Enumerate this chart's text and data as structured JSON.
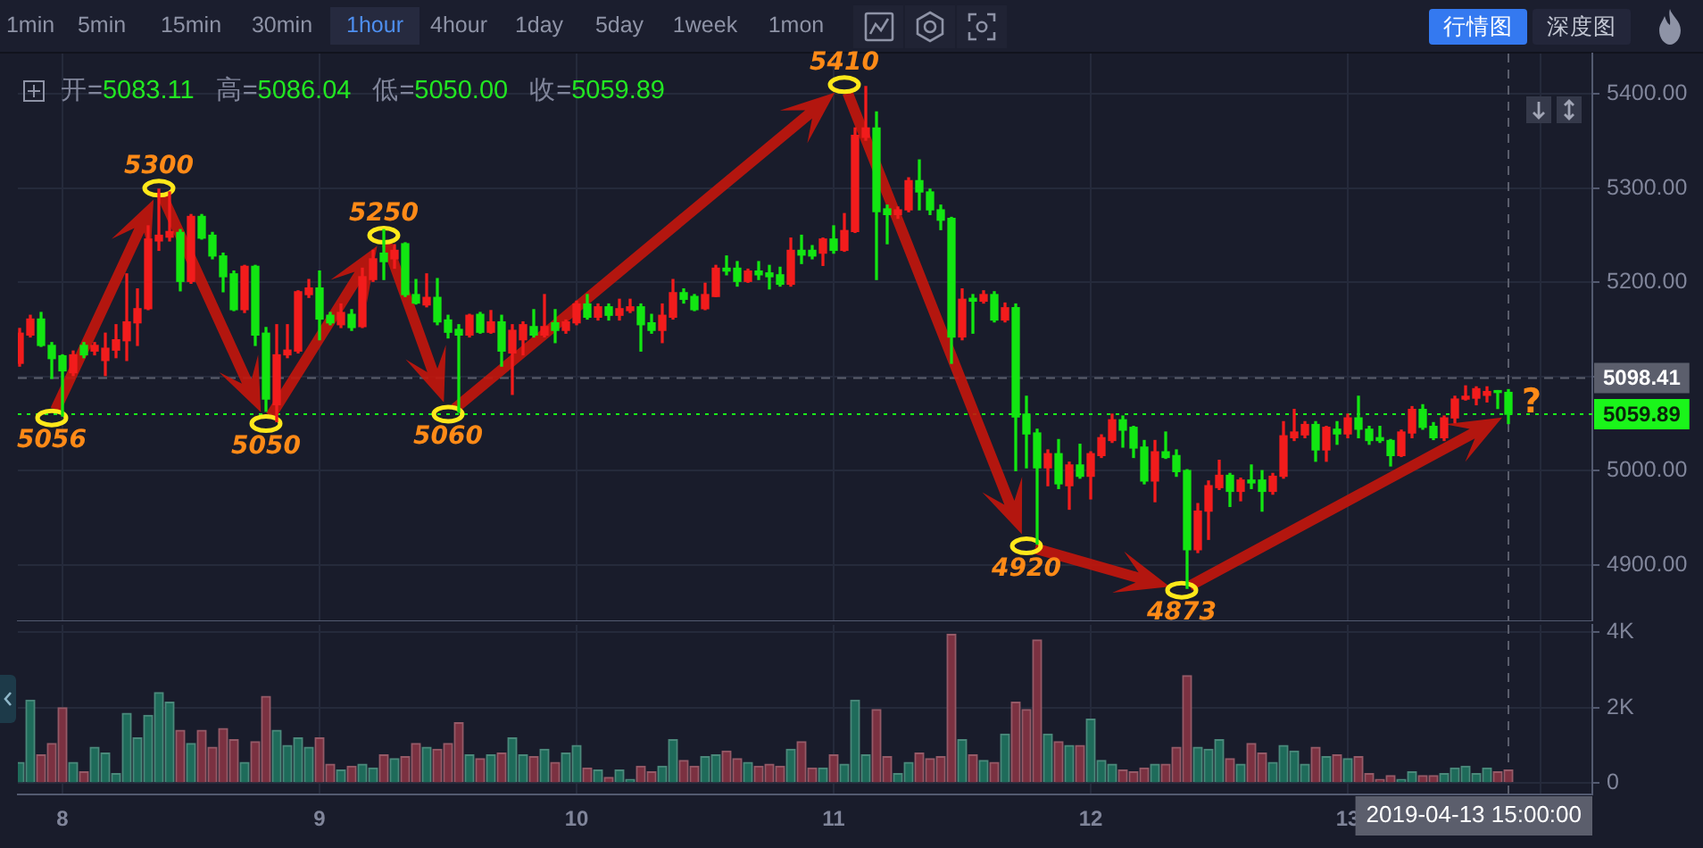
{
  "chart_data": [
    {
      "type": "candlestick",
      "x": [
        "2019-04-07T20:00",
        "2019-04-07T21:00",
        "2019-04-07T22:00",
        "2019-04-07T23:00",
        "2019-04-08T00:00",
        "2019-04-08T01:00",
        "2019-04-08T02:00",
        "2019-04-08T03:00",
        "2019-04-08T04:00",
        "2019-04-08T05:00",
        "2019-04-08T06:00",
        "2019-04-08T07:00",
        "2019-04-08T08:00",
        "2019-04-08T09:00",
        "2019-04-08T10:00",
        "2019-04-08T11:00",
        "2019-04-08T12:00",
        "2019-04-08T13:00",
        "2019-04-08T14:00",
        "2019-04-08T15:00",
        "2019-04-08T16:00",
        "2019-04-08T17:00",
        "2019-04-08T18:00",
        "2019-04-08T19:00",
        "2019-04-08T20:00",
        "2019-04-08T21:00",
        "2019-04-08T22:00",
        "2019-04-08T23:00",
        "2019-04-09T00:00",
        "2019-04-09T01:00",
        "2019-04-09T02:00",
        "2019-04-09T03:00",
        "2019-04-09T04:00",
        "2019-04-09T05:00",
        "2019-04-09T06:00",
        "2019-04-09T07:00",
        "2019-04-09T08:00",
        "2019-04-09T09:00",
        "2019-04-09T10:00",
        "2019-04-09T11:00",
        "2019-04-09T12:00",
        "2019-04-09T13:00",
        "2019-04-09T14:00",
        "2019-04-09T15:00",
        "2019-04-09T16:00",
        "2019-04-09T17:00",
        "2019-04-09T18:00",
        "2019-04-09T19:00",
        "2019-04-09T20:00",
        "2019-04-09T21:00",
        "2019-04-09T22:00",
        "2019-04-09T23:00",
        "2019-04-10T00:00",
        "2019-04-10T01:00",
        "2019-04-10T02:00",
        "2019-04-10T03:00",
        "2019-04-10T04:00",
        "2019-04-10T05:00",
        "2019-04-10T06:00",
        "2019-04-10T07:00",
        "2019-04-10T08:00",
        "2019-04-10T09:00",
        "2019-04-10T10:00",
        "2019-04-10T11:00",
        "2019-04-10T12:00",
        "2019-04-10T13:00",
        "2019-04-10T14:00",
        "2019-04-10T15:00",
        "2019-04-10T16:00",
        "2019-04-10T17:00",
        "2019-04-10T18:00",
        "2019-04-10T19:00",
        "2019-04-10T20:00",
        "2019-04-10T21:00",
        "2019-04-10T22:00",
        "2019-04-10T23:00",
        "2019-04-11T00:00",
        "2019-04-11T01:00",
        "2019-04-11T02:00",
        "2019-04-11T03:00",
        "2019-04-11T04:00",
        "2019-04-11T05:00",
        "2019-04-11T06:00",
        "2019-04-11T07:00",
        "2019-04-11T08:00",
        "2019-04-11T09:00",
        "2019-04-11T10:00",
        "2019-04-11T11:00",
        "2019-04-11T12:00",
        "2019-04-11T13:00",
        "2019-04-11T14:00",
        "2019-04-11T15:00",
        "2019-04-11T16:00",
        "2019-04-11T17:00",
        "2019-04-11T18:00",
        "2019-04-11T19:00",
        "2019-04-11T20:00",
        "2019-04-11T21:00",
        "2019-04-11T22:00",
        "2019-04-11T23:00",
        "2019-04-12T00:00",
        "2019-04-12T01:00",
        "2019-04-12T02:00",
        "2019-04-12T03:00",
        "2019-04-12T04:00",
        "2019-04-12T05:00",
        "2019-04-12T06:00",
        "2019-04-12T07:00",
        "2019-04-12T08:00",
        "2019-04-12T09:00",
        "2019-04-12T10:00",
        "2019-04-12T11:00",
        "2019-04-12T12:00",
        "2019-04-12T13:00",
        "2019-04-12T14:00",
        "2019-04-12T15:00",
        "2019-04-12T16:00",
        "2019-04-12T17:00",
        "2019-04-12T18:00",
        "2019-04-12T19:00",
        "2019-04-12T20:00",
        "2019-04-12T21:00",
        "2019-04-12T22:00",
        "2019-04-12T23:00",
        "2019-04-13T00:00",
        "2019-04-13T01:00",
        "2019-04-13T02:00",
        "2019-04-13T03:00",
        "2019-04-13T04:00",
        "2019-04-13T05:00",
        "2019-04-13T06:00",
        "2019-04-13T07:00",
        "2019-04-13T08:00",
        "2019-04-13T09:00",
        "2019-04-13T10:00",
        "2019-04-13T11:00",
        "2019-04-13T12:00",
        "2019-04-13T13:00",
        "2019-04-13T14:00",
        "2019-04-13T15:00"
      ],
      "ohlc": [
        [
          5114,
          5151,
          5111,
          5146
        ],
        [
          5144,
          5165,
          5142,
          5161
        ],
        [
          5161,
          5168,
          5132,
          5133
        ],
        [
          5133,
          5136,
          5098,
          5119
        ],
        [
          5122,
          5123,
          5058,
          5106
        ],
        [
          5104,
          5127,
          5101,
          5123
        ],
        [
          5133,
          5136,
          5120,
          5123
        ],
        [
          5127,
          5136,
          5123,
          5133
        ],
        [
          5117,
          5146,
          5101,
          5130
        ],
        [
          5128,
          5155,
          5120,
          5139
        ],
        [
          5138,
          5209,
          5117,
          5158
        ],
        [
          5157,
          5193,
          5133,
          5172
        ],
        [
          5172,
          5260,
          5171,
          5246
        ],
        [
          5244,
          5299,
          5234,
          5250
        ],
        [
          5248,
          5296,
          5244,
          5254
        ],
        [
          5253,
          5256,
          5191,
          5201
        ],
        [
          5201,
          5272,
          5199,
          5270
        ],
        [
          5270,
          5272,
          5246,
          5247
        ],
        [
          5250,
          5253,
          5225,
          5228
        ],
        [
          5228,
          5231,
          5190,
          5206
        ],
        [
          5209,
          5212,
          5170,
          5171
        ],
        [
          5171,
          5218,
          5168,
          5217
        ],
        [
          5217,
          5218,
          5133,
          5144
        ],
        [
          5146,
          5152,
          5063,
          5076
        ],
        [
          5070,
          5155,
          5052,
          5123
        ],
        [
          5123,
          5155,
          5120,
          5128
        ],
        [
          5127,
          5191,
          5125,
          5190
        ],
        [
          5187,
          5203,
          5184,
          5194
        ],
        [
          5194,
          5212,
          5139,
          5161
        ],
        [
          5165,
          5168,
          5155,
          5157
        ],
        [
          5155,
          5177,
          5152,
          5168
        ],
        [
          5166,
          5171,
          5149,
          5152
        ],
        [
          5153,
          5215,
          5152,
          5206
        ],
        [
          5203,
          5234,
          5201,
          5225
        ],
        [
          5231,
          5256,
          5203,
          5222
        ],
        [
          5225,
          5240,
          5215,
          5234
        ],
        [
          5241,
          5242,
          5185,
          5187
        ],
        [
          5187,
          5203,
          5177,
          5178
        ],
        [
          5176,
          5209,
          5174,
          5184
        ],
        [
          5184,
          5204,
          5155,
          5158
        ],
        [
          5160,
          5165,
          5141,
          5147
        ],
        [
          5150,
          5155,
          5062,
          5144
        ],
        [
          5144,
          5166,
          5142,
          5165
        ],
        [
          5166,
          5168,
          5146,
          5147
        ],
        [
          5147,
          5170,
          5146,
          5158
        ],
        [
          5158,
          5165,
          5111,
          5127
        ],
        [
          5125,
          5155,
          5081,
          5149
        ],
        [
          5139,
          5158,
          5123,
          5155
        ],
        [
          5153,
          5171,
          5142,
          5144
        ],
        [
          5144,
          5187,
          5142,
          5153
        ],
        [
          5157,
          5171,
          5136,
          5149
        ],
        [
          5149,
          5160,
          5146,
          5158
        ],
        [
          5157,
          5180,
          5155,
          5177
        ],
        [
          5177,
          5187,
          5161,
          5163
        ],
        [
          5163,
          5177,
          5160,
          5174
        ],
        [
          5174,
          5177,
          5160,
          5165
        ],
        [
          5165,
          5182,
          5160,
          5172
        ],
        [
          5170,
          5182,
          5168,
          5174
        ],
        [
          5174,
          5177,
          5127,
          5155
        ],
        [
          5157,
          5166,
          5146,
          5149
        ],
        [
          5149,
          5177,
          5136,
          5165
        ],
        [
          5163,
          5203,
          5161,
          5189
        ],
        [
          5189,
          5193,
          5178,
          5182
        ],
        [
          5185,
          5187,
          5170,
          5171
        ],
        [
          5172,
          5199,
          5171,
          5187
        ],
        [
          5185,
          5218,
          5185,
          5215
        ],
        [
          5215,
          5228,
          5208,
          5212
        ],
        [
          5215,
          5222,
          5196,
          5201
        ],
        [
          5201,
          5214,
          5200,
          5212
        ],
        [
          5212,
          5222,
          5203,
          5208
        ],
        [
          5210,
          5218,
          5193,
          5206
        ],
        [
          5208,
          5216,
          5196,
          5198
        ],
        [
          5198,
          5247,
          5196,
          5234
        ],
        [
          5234,
          5250,
          5220,
          5229
        ],
        [
          5234,
          5239,
          5225,
          5228
        ],
        [
          5231,
          5247,
          5218,
          5246
        ],
        [
          5246,
          5260,
          5231,
          5234
        ],
        [
          5234,
          5273,
          5233,
          5255
        ],
        [
          5254,
          5364,
          5253,
          5356
        ],
        [
          5354,
          5408,
          5351,
          5364
        ],
        [
          5364,
          5381,
          5203,
          5275
        ],
        [
          5278,
          5282,
          5241,
          5272
        ],
        [
          5272,
          5280,
          5268,
          5277
        ],
        [
          5277,
          5311,
          5275,
          5308
        ],
        [
          5308,
          5330,
          5277,
          5296
        ],
        [
          5296,
          5299,
          5272,
          5277
        ],
        [
          5277,
          5282,
          5256,
          5266
        ],
        [
          5268,
          5269,
          5114,
          5142
        ],
        [
          5142,
          5193,
          5139,
          5182
        ],
        [
          5183,
          5187,
          5146,
          5180
        ],
        [
          5180,
          5191,
          5178,
          5187
        ],
        [
          5187,
          5190,
          5158,
          5160
        ],
        [
          5160,
          5178,
          5158,
          5173
        ],
        [
          5173,
          5177,
          5000,
          5057
        ],
        [
          5060,
          5079,
          5003,
          5039
        ],
        [
          5040,
          5044,
          4922,
          5003
        ],
        [
          5003,
          5022,
          4984,
          5018
        ],
        [
          5018,
          5033,
          4981,
          4986
        ],
        [
          4984,
          5009,
          4959,
          5006
        ],
        [
          5006,
          5028,
          4992,
          4994
        ],
        [
          4994,
          5020,
          4970,
          5018
        ],
        [
          5016,
          5038,
          5014,
          5035
        ],
        [
          5032,
          5060,
          5030,
          5054
        ],
        [
          5054,
          5058,
          5025,
          5043
        ],
        [
          5046,
          5047,
          5014,
          5024
        ],
        [
          5025,
          5032,
          4986,
          4989
        ],
        [
          4989,
          5032,
          4967,
          5020
        ],
        [
          5020,
          5041,
          5013,
          5014
        ],
        [
          5016,
          5022,
          4994,
          4999
        ],
        [
          5000,
          5001,
          4875,
          4916
        ],
        [
          4916,
          4965,
          4913,
          4957
        ],
        [
          4957,
          4989,
          4927,
          4984
        ],
        [
          4982,
          5011,
          4980,
          4995
        ],
        [
          4995,
          4997,
          4962,
          4978
        ],
        [
          4978,
          4992,
          4968,
          4990
        ],
        [
          4990,
          5006,
          4981,
          4987
        ],
        [
          4990,
          5000,
          4957,
          4978
        ],
        [
          4978,
          4997,
          4975,
          4994
        ],
        [
          4994,
          5052,
          4992,
          5037
        ],
        [
          5035,
          5065,
          5032,
          5041
        ],
        [
          5038,
          5052,
          5035,
          5049
        ],
        [
          5049,
          5052,
          5010,
          5022
        ],
        [
          5022,
          5047,
          5010,
          5046
        ],
        [
          5044,
          5052,
          5028,
          5039
        ],
        [
          5039,
          5060,
          5035,
          5056
        ],
        [
          5056,
          5079,
          5035,
          5044
        ],
        [
          5044,
          5047,
          5028,
          5032
        ],
        [
          5035,
          5047,
          5030,
          5032
        ],
        [
          5032,
          5033,
          5005,
          5016
        ],
        [
          5016,
          5043,
          5015,
          5041
        ],
        [
          5040,
          5068,
          5035,
          5065
        ],
        [
          5065,
          5070,
          5044,
          5046
        ],
        [
          5047,
          5051,
          5033,
          5035
        ],
        [
          5035,
          5058,
          5032,
          5056
        ],
        [
          5056,
          5079,
          5051,
          5076
        ],
        [
          5076,
          5090,
          5075,
          5079
        ],
        [
          5077,
          5089,
          5070,
          5087
        ],
        [
          5080,
          5089,
          5073,
          5084
        ],
        [
          5085,
          5085,
          5066,
          5083
        ],
        [
          5083.11,
          5086.04,
          5050,
          5059.89
        ]
      ],
      "colors": [
        "#f21c1c",
        "#f21c1c",
        "#12e612",
        "#12e612",
        "#12e612",
        "#f21c1c",
        "#12e612",
        "#f21c1c",
        "#f21c1c",
        "#f21c1c",
        "#f21c1c",
        "#f21c1c",
        "#f21c1c",
        "#f21c1c",
        "#f21c1c",
        "#12e612",
        "#f21c1c",
        "#12e612",
        "#12e612",
        "#12e612",
        "#12e612",
        "#f21c1c",
        "#12e612",
        "#12e612",
        "#f21c1c",
        "#f21c1c",
        "#f21c1c",
        "#f21c1c",
        "#12e612",
        "#12e612",
        "#f21c1c",
        "#12e612",
        "#f21c1c",
        "#f21c1c",
        "#12e612",
        "#f21c1c",
        "#12e612",
        "#12e612",
        "#f21c1c",
        "#12e612",
        "#12e612",
        "#12e612",
        "#f21c1c",
        "#12e612",
        "#f21c1c",
        "#12e612",
        "#f21c1c",
        "#f21c1c",
        "#12e612",
        "#f21c1c",
        "#12e612",
        "#f21c1c",
        "#f21c1c",
        "#12e612",
        "#f21c1c",
        "#12e612",
        "#f21c1c",
        "#f21c1c",
        "#12e612",
        "#12e612",
        "#f21c1c",
        "#f21c1c",
        "#12e612",
        "#12e612",
        "#f21c1c",
        "#f21c1c",
        "#12e612",
        "#12e612",
        "#f21c1c",
        "#12e612",
        "#12e612",
        "#12e612",
        "#f21c1c",
        "#12e612",
        "#12e612",
        "#f21c1c",
        "#12e612",
        "#f21c1c",
        "#f21c1c",
        "#f21c1c",
        "#12e612",
        "#12e612",
        "#f21c1c",
        "#f21c1c",
        "#12e612",
        "#12e612",
        "#12e612",
        "#12e612",
        "#f21c1c",
        "#12e612",
        "#f21c1c",
        "#12e612",
        "#f21c1c",
        "#12e612",
        "#12e612",
        "#12e612",
        "#f21c1c",
        "#12e612",
        "#f21c1c",
        "#12e612",
        "#f21c1c",
        "#f21c1c",
        "#f21c1c",
        "#12e612",
        "#12e612",
        "#12e612",
        "#f21c1c",
        "#12e612",
        "#12e612",
        "#12e612",
        "#f21c1c",
        "#f21c1c",
        "#f21c1c",
        "#12e612",
        "#f21c1c",
        "#12e612",
        "#12e612",
        "#f21c1c",
        "#f21c1c",
        "#f21c1c",
        "#f21c1c",
        "#12e612",
        "#f21c1c",
        "#12e612",
        "#f21c1c",
        "#12e612",
        "#12e612",
        "#12e612",
        "#12e612",
        "#f21c1c",
        "#f21c1c",
        "#12e612",
        "#12e612",
        "#f21c1c",
        "#f21c1c",
        "#f21c1c",
        "#f21c1c",
        "#f21c1c",
        "#12e612",
        "#12e612"
      ],
      "xlim": [
        "2019-04-07T19:50",
        "2019-04-13T22:50"
      ],
      "xticks": [
        {
          "value": "2019-04-08",
          "label": null
        },
        {
          "value": "2019-04-09",
          "label": null
        },
        {
          "value": "2019-04-10",
          "label": null
        },
        {
          "value": "2019-04-11",
          "label": null
        },
        {
          "value": "2019-04-12",
          "label": null
        },
        {
          "value": "2019-04-13",
          "label": null
        },
        {
          "value": "2019-04-13T18:00",
          "label": null
        }
      ],
      "ylim": [
        4840,
        5443
      ],
      "yticks": [
        {
          "value": 4900,
          "label": "4900.00"
        },
        {
          "value": 5000,
          "label": "5000.00"
        },
        {
          "value": 5100,
          "label": null
        },
        {
          "value": 5200,
          "label": "5200.00"
        },
        {
          "value": 5300,
          "label": "5300.00"
        },
        {
          "value": 5400,
          "label": "5400.00"
        }
      ],
      "grid": true,
      "tick_labels": "y",
      "ref_lines": [
        {
          "axis": "y",
          "value": 5098.41,
          "label": "5098.41",
          "color": "#5b5e6c",
          "line_style": "dashed"
        },
        {
          "axis": "y",
          "value": 5059.89,
          "label": "5059.89",
          "color": "#1af51a",
          "line_style": "dotted"
        },
        {
          "axis": "x",
          "value": "2019-04-13T15:00",
          "color": "#5b5e6c",
          "line_style": "dashed"
        }
      ],
      "annotations": [
        "1min",
        "5min",
        "15min",
        "30min",
        "1hour",
        "4hour",
        "1day",
        "5day",
        "1week",
        "1mon",
        "行情图",
        "深度图",
        "开=5083.11",
        "高=5086.04",
        "低=5050.00",
        "收=5059.89",
        {
          "text": "5056",
          "x": "2019-04-07T23:00",
          "y": 5056
        },
        {
          "text": "5300",
          "x": "2019-04-08T09:00",
          "y": 5300
        },
        {
          "text": "5050",
          "x": "2019-04-08T19:00",
          "y": 5050
        },
        {
          "text": "5250",
          "x": "2019-04-09T06:00",
          "y": 5250
        },
        {
          "text": "5060",
          "x": "2019-04-09T12:00",
          "y": 5060
        },
        {
          "text": "5410",
          "x": "2019-04-11T01:00",
          "y": 5410
        },
        {
          "text": "4920",
          "x": "2019-04-11T18:00",
          "y": 4920
        },
        {
          "text": "4873",
          "x": "2019-04-12T08:30",
          "y": 4873
        },
        {
          "text": "?",
          "x": "2019-04-13T15:00",
          "y": 5059.89
        }
      ]
    },
    {
      "type": "bar",
      "x": [
        "2019-04-07T20:00",
        "2019-04-07T21:00",
        "2019-04-07T22:00",
        "2019-04-07T23:00",
        "2019-04-08T00:00",
        "2019-04-08T01:00",
        "2019-04-08T02:00",
        "2019-04-08T03:00",
        "2019-04-08T04:00",
        "2019-04-08T05:00",
        "2019-04-08T06:00",
        "2019-04-08T07:00",
        "2019-04-08T08:00",
        "2019-04-08T09:00",
        "2019-04-08T10:00",
        "2019-04-08T11:00",
        "2019-04-08T12:00",
        "2019-04-08T13:00",
        "2019-04-08T14:00",
        "2019-04-08T15:00",
        "2019-04-08T16:00",
        "2019-04-08T17:00",
        "2019-04-08T18:00",
        "2019-04-08T19:00",
        "2019-04-08T20:00",
        "2019-04-08T21:00",
        "2019-04-08T22:00",
        "2019-04-08T23:00",
        "2019-04-09T00:00",
        "2019-04-09T01:00",
        "2019-04-09T02:00",
        "2019-04-09T03:00",
        "2019-04-09T04:00",
        "2019-04-09T05:00",
        "2019-04-09T06:00",
        "2019-04-09T07:00",
        "2019-04-09T08:00",
        "2019-04-09T09:00",
        "2019-04-09T10:00",
        "2019-04-09T11:00",
        "2019-04-09T12:00",
        "2019-04-09T13:00",
        "2019-04-09T14:00",
        "2019-04-09T15:00",
        "2019-04-09T16:00",
        "2019-04-09T17:00",
        "2019-04-09T18:00",
        "2019-04-09T19:00",
        "2019-04-09T20:00",
        "2019-04-09T21:00",
        "2019-04-09T22:00",
        "2019-04-09T23:00",
        "2019-04-10T00:00",
        "2019-04-10T01:00",
        "2019-04-10T02:00",
        "2019-04-10T03:00",
        "2019-04-10T04:00",
        "2019-04-10T05:00",
        "2019-04-10T06:00",
        "2019-04-10T07:00",
        "2019-04-10T08:00",
        "2019-04-10T09:00",
        "2019-04-10T10:00",
        "2019-04-10T11:00",
        "2019-04-10T12:00",
        "2019-04-10T13:00",
        "2019-04-10T14:00",
        "2019-04-10T15:00",
        "2019-04-10T16:00",
        "2019-04-10T17:00",
        "2019-04-10T18:00",
        "2019-04-10T19:00",
        "2019-04-10T20:00",
        "2019-04-10T21:00",
        "2019-04-10T22:00",
        "2019-04-10T23:00",
        "2019-04-11T00:00",
        "2019-04-11T01:00",
        "2019-04-11T02:00",
        "2019-04-11T03:00",
        "2019-04-11T04:00",
        "2019-04-11T05:00",
        "2019-04-11T06:00",
        "2019-04-11T07:00",
        "2019-04-11T08:00",
        "2019-04-11T09:00",
        "2019-04-11T10:00",
        "2019-04-11T11:00",
        "2019-04-11T12:00",
        "2019-04-11T13:00",
        "2019-04-11T14:00",
        "2019-04-11T15:00",
        "2019-04-11T16:00",
        "2019-04-11T17:00",
        "2019-04-11T18:00",
        "2019-04-11T19:00",
        "2019-04-11T20:00",
        "2019-04-11T21:00",
        "2019-04-11T22:00",
        "2019-04-11T23:00",
        "2019-04-12T00:00",
        "2019-04-12T01:00",
        "2019-04-12T02:00",
        "2019-04-12T03:00",
        "2019-04-12T04:00",
        "2019-04-12T05:00",
        "2019-04-12T06:00",
        "2019-04-12T07:00",
        "2019-04-12T08:00",
        "2019-04-12T09:00",
        "2019-04-12T10:00",
        "2019-04-12T11:00",
        "2019-04-12T12:00",
        "2019-04-12T13:00",
        "2019-04-12T14:00",
        "2019-04-12T15:00",
        "2019-04-12T16:00",
        "2019-04-12T17:00",
        "2019-04-12T18:00",
        "2019-04-12T19:00",
        "2019-04-12T20:00",
        "2019-04-12T21:00",
        "2019-04-12T22:00",
        "2019-04-12T23:00",
        "2019-04-13T00:00",
        "2019-04-13T01:00",
        "2019-04-13T02:00",
        "2019-04-13T03:00",
        "2019-04-13T04:00",
        "2019-04-13T05:00",
        "2019-04-13T06:00",
        "2019-04-13T07:00",
        "2019-04-13T08:00",
        "2019-04-13T09:00",
        "2019-04-13T10:00",
        "2019-04-13T11:00",
        "2019-04-13T12:00",
        "2019-04-13T13:00",
        "2019-04-13T14:00",
        "2019-04-13T15:00"
      ],
      "values": [
        550,
        2200,
        750,
        1050,
        2000,
        550,
        300,
        950,
        800,
        250,
        1850,
        1200,
        1800,
        2400,
        2150,
        1400,
        1050,
        1400,
        950,
        1450,
        1150,
        550,
        1100,
        2300,
        1400,
        1000,
        1200,
        950,
        1200,
        500,
        350,
        450,
        500,
        400,
        750,
        650,
        700,
        1050,
        950,
        900,
        1050,
        1600,
        750,
        650,
        750,
        800,
        1200,
        750,
        700,
        900,
        550,
        800,
        1000,
        400,
        350,
        150,
        350,
        100,
        450,
        300,
        450,
        1150,
        600,
        450,
        700,
        750,
        850,
        650,
        550,
        450,
        500,
        450,
        900,
        1100,
        400,
        400,
        750,
        500,
        2200,
        750,
        1950,
        700,
        250,
        550,
        800,
        650,
        700,
        3950,
        1150,
        750,
        600,
        550,
        1300,
        2150,
        1950,
        3800,
        1300,
        1100,
        1000,
        1000,
        1700,
        600,
        500,
        350,
        300,
        400,
        500,
        500,
        950,
        2850,
        950,
        900,
        1150,
        650,
        500,
        1050,
        800,
        550,
        1000,
        850,
        500,
        950,
        700,
        750,
        650,
        700,
        250,
        100,
        200,
        100,
        300,
        200,
        200,
        250,
        400,
        450,
        250,
        400,
        300,
        350
      ],
      "colors": [
        "#1e6b5a",
        "#1e6b5a",
        "#7b3141",
        "#7b3141",
        "#7b3141",
        "#1e6b5a",
        "#7b3141",
        "#1e6b5a",
        "#1e6b5a",
        "#1e6b5a",
        "#1e6b5a",
        "#1e6b5a",
        "#1e6b5a",
        "#1e6b5a",
        "#1e6b5a",
        "#7b3141",
        "#1e6b5a",
        "#7b3141",
        "#7b3141",
        "#7b3141",
        "#7b3141",
        "#1e6b5a",
        "#7b3141",
        "#7b3141",
        "#1e6b5a",
        "#1e6b5a",
        "#1e6b5a",
        "#1e6b5a",
        "#7b3141",
        "#7b3141",
        "#1e6b5a",
        "#7b3141",
        "#1e6b5a",
        "#1e6b5a",
        "#7b3141",
        "#1e6b5a",
        "#7b3141",
        "#7b3141",
        "#1e6b5a",
        "#7b3141",
        "#7b3141",
        "#7b3141",
        "#1e6b5a",
        "#7b3141",
        "#1e6b5a",
        "#7b3141",
        "#1e6b5a",
        "#1e6b5a",
        "#7b3141",
        "#1e6b5a",
        "#7b3141",
        "#1e6b5a",
        "#1e6b5a",
        "#7b3141",
        "#1e6b5a",
        "#7b3141",
        "#1e6b5a",
        "#1e6b5a",
        "#7b3141",
        "#7b3141",
        "#1e6b5a",
        "#1e6b5a",
        "#7b3141",
        "#7b3141",
        "#1e6b5a",
        "#1e6b5a",
        "#7b3141",
        "#7b3141",
        "#1e6b5a",
        "#7b3141",
        "#7b3141",
        "#7b3141",
        "#1e6b5a",
        "#7b3141",
        "#7b3141",
        "#1e6b5a",
        "#7b3141",
        "#1e6b5a",
        "#1e6b5a",
        "#1e6b5a",
        "#7b3141",
        "#7b3141",
        "#1e6b5a",
        "#1e6b5a",
        "#7b3141",
        "#7b3141",
        "#7b3141",
        "#7b3141",
        "#1e6b5a",
        "#7b3141",
        "#1e6b5a",
        "#7b3141",
        "#1e6b5a",
        "#7b3141",
        "#7b3141",
        "#7b3141",
        "#1e6b5a",
        "#7b3141",
        "#1e6b5a",
        "#7b3141",
        "#1e6b5a",
        "#1e6b5a",
        "#1e6b5a",
        "#7b3141",
        "#7b3141",
        "#7b3141",
        "#1e6b5a",
        "#7b3141",
        "#7b3141",
        "#7b3141",
        "#1e6b5a",
        "#1e6b5a",
        "#1e6b5a",
        "#7b3141",
        "#1e6b5a",
        "#7b3141",
        "#7b3141",
        "#1e6b5a",
        "#1e6b5a",
        "#1e6b5a",
        "#1e6b5a",
        "#7b3141",
        "#1e6b5a",
        "#7b3141",
        "#1e6b5a",
        "#7b3141",
        "#7b3141",
        "#7b3141",
        "#7b3141",
        "#1e6b5a",
        "#1e6b5a",
        "#7b3141",
        "#7b3141",
        "#1e6b5a",
        "#1e6b5a",
        "#1e6b5a",
        "#1e6b5a",
        "#1e6b5a",
        "#7b3141",
        "#7b3141"
      ],
      "xlim": [
        "2019-04-07T19:50",
        "2019-04-13T22:50"
      ],
      "xticks": [
        {
          "value": "2019-04-08",
          "label": "8"
        },
        {
          "value": "2019-04-09",
          "label": "9"
        },
        {
          "value": "2019-04-10",
          "label": "10"
        },
        {
          "value": "2019-04-11",
          "label": "11"
        },
        {
          "value": "2019-04-12",
          "label": "12"
        },
        {
          "value": "2019-04-13",
          "label": "13"
        },
        {
          "value": "2019-04-13T18:00",
          "label": null
        }
      ],
      "ylim": [
        -300,
        4200
      ],
      "yticks": [
        0,
        {
          "value": 2000,
          "label": "2K"
        },
        {
          "value": 4000,
          "label": "4K"
        }
      ],
      "grid": true,
      "ref_lines": [
        {
          "axis": "x",
          "value": "2019-04-13T15:00",
          "label": "2019-04-13 15:00:00",
          "color": "#5b5e6c",
          "line_style": "dashed"
        }
      ]
    }
  ]
}
